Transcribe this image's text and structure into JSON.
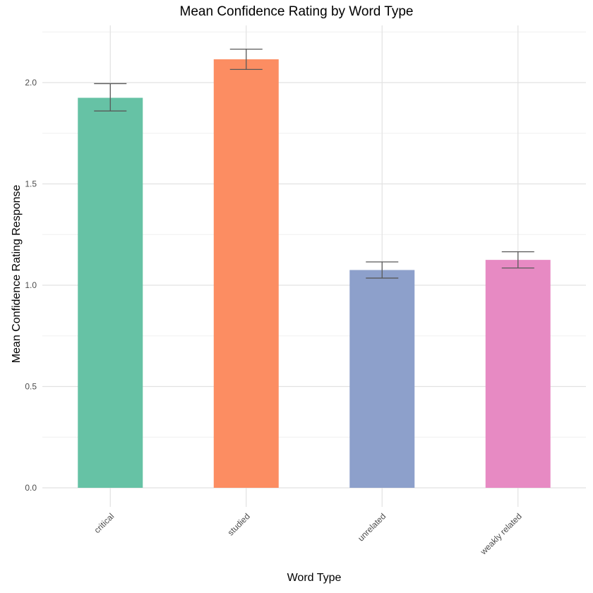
{
  "chart_data": {
    "type": "bar",
    "title": "Mean Confidence Rating by Word Type",
    "xlabel": "Word Type",
    "ylabel": "Mean Confidence Rating Response",
    "categories": [
      "critical",
      "studied",
      "unrelated",
      "weakly related"
    ],
    "values": [
      1.925,
      2.115,
      1.075,
      1.125
    ],
    "error_bars": [
      {
        "low": 1.86,
        "high": 1.995
      },
      {
        "low": 2.065,
        "high": 2.165
      },
      {
        "low": 1.035,
        "high": 1.115
      },
      {
        "low": 1.085,
        "high": 1.165
      }
    ],
    "colors": [
      "#66c2a5",
      "#fc8d62",
      "#8da0cb",
      "#e78ac3"
    ],
    "ylim": [
      0,
      2.25
    ],
    "yticks": [
      0.0,
      0.5,
      1.0,
      1.5,
      2.0
    ],
    "ytick_labels": [
      "0.0",
      "0.5",
      "1.0",
      "1.5",
      "2.0"
    ],
    "grid": true,
    "legend": "none"
  }
}
